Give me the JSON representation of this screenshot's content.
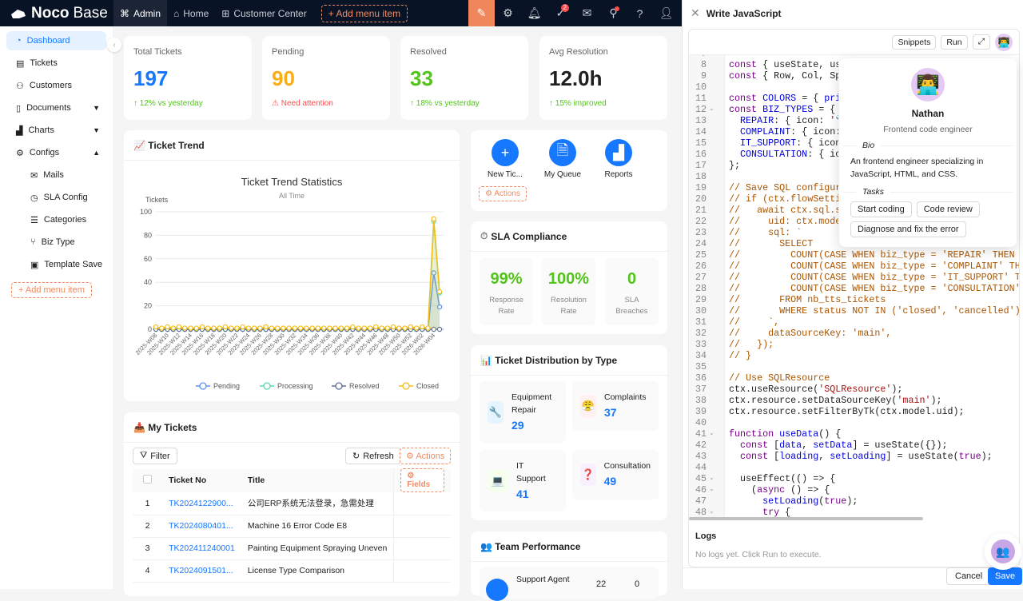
{
  "topbar": {
    "logo": {
      "bold": "Noco",
      "light": "Base"
    },
    "nav": [
      "Admin",
      "Home",
      "Customer Center"
    ],
    "add_menu": "+ Add menu item",
    "todo_badge": "2"
  },
  "sidebar": {
    "items": [
      {
        "label": "Dashboard",
        "icon": "dashboard-icon"
      },
      {
        "label": "Tickets",
        "icon": "ticket-icon"
      },
      {
        "label": "Customers",
        "icon": "users-icon"
      },
      {
        "label": "Documents",
        "icon": "document-icon"
      },
      {
        "label": "Charts",
        "icon": "chart-icon"
      },
      {
        "label": "Configs",
        "icon": "gear-icon"
      },
      {
        "label": "Mails",
        "icon": "mail-icon"
      },
      {
        "label": "SLA Config",
        "icon": "clock-icon"
      },
      {
        "label": "Categories",
        "icon": "list-icon"
      },
      {
        "label": "Biz Type",
        "icon": "branch-icon"
      },
      {
        "label": "Template Save",
        "icon": "save-icon"
      }
    ],
    "add_menu": "+ Add menu item"
  },
  "stats": [
    {
      "label": "Total Tickets",
      "value": "197",
      "sub": "↑ 12% vs yesterday",
      "color": "#1677ff",
      "sub_color": "#52c41a"
    },
    {
      "label": "Pending",
      "value": "90",
      "sub": "⚠ Need attention",
      "color": "#faad14",
      "sub_color": "#ff4d4f"
    },
    {
      "label": "Resolved",
      "value": "33",
      "sub": "↑ 18% vs yesterday",
      "color": "#52c41a",
      "sub_color": "#52c41a"
    },
    {
      "label": "Avg Resolution",
      "value": "12.0h",
      "sub": "↑ 15% improved",
      "color": "#1f1f1f",
      "sub_color": "#52c41a"
    }
  ],
  "trend": {
    "header": "📈 Ticket Trend"
  },
  "chart_data": {
    "type": "line",
    "title": "Ticket Trend Statistics",
    "subtitle": "All Time",
    "ylabel": "Tickets",
    "ylim": [
      0,
      100
    ],
    "yticks": [
      0,
      20,
      40,
      60,
      80,
      100
    ],
    "grid": true,
    "legend": "bottom",
    "x": [
      "2025-W08",
      "2025-W09",
      "2025-W10",
      "2025-W11",
      "2025-W12",
      "2025-W13",
      "2025-W14",
      "2025-W15",
      "2025-W16",
      "2025-W17",
      "2025-W18",
      "2025-W19",
      "2025-W20",
      "2025-W21",
      "2025-W22",
      "2025-W23",
      "2025-W24",
      "2025-W25",
      "2025-W26",
      "2025-W27",
      "2025-W28",
      "2025-W29",
      "2025-W30",
      "2025-W31",
      "2025-W32",
      "2025-W33",
      "2025-W34",
      "2025-W35",
      "2025-W36",
      "2025-W37",
      "2025-W38",
      "2025-W39",
      "2025-W40",
      "2025-W41",
      "2025-W42",
      "2025-W43",
      "2025-W44",
      "2025-W45",
      "2025-W46",
      "2025-W47",
      "2025-W48",
      "2025-W49",
      "2025-W50",
      "2025-W51",
      "2025-W52",
      "2026-W01",
      "2026-W02",
      "2026-W03",
      "2026-W04",
      "2026-W05"
    ],
    "series": [
      {
        "name": "Pending",
        "color": "#5b8ff9",
        "values": [
          0,
          0,
          0,
          0,
          0,
          0,
          0,
          0,
          0,
          0,
          0,
          0,
          0,
          0,
          0,
          0,
          0,
          0,
          0,
          0,
          0,
          0,
          0,
          0,
          0,
          0,
          0,
          0,
          0,
          0,
          0,
          0,
          0,
          0,
          0,
          0,
          0,
          0,
          0,
          0,
          0,
          0,
          0,
          0,
          0,
          0,
          0,
          0,
          48,
          19
        ]
      },
      {
        "name": "Processing",
        "color": "#5ad8a6",
        "values": [
          0,
          0,
          0,
          0,
          0,
          0,
          0,
          0,
          0,
          0,
          0,
          0,
          0,
          0,
          0,
          0,
          0,
          0,
          0,
          0,
          0,
          0,
          0,
          0,
          0,
          0,
          0,
          0,
          0,
          0,
          0,
          0,
          0,
          0,
          0,
          0,
          0,
          0,
          0,
          0,
          0,
          0,
          0,
          0,
          0,
          0,
          0,
          0,
          92,
          31
        ]
      },
      {
        "name": "Resolved",
        "color": "#5d7092",
        "values": [
          0,
          0,
          0,
          0,
          0,
          0,
          0,
          0,
          0,
          0,
          0,
          0,
          0,
          0,
          0,
          0,
          0,
          0,
          0,
          0,
          0,
          0,
          0,
          0,
          0,
          0,
          0,
          0,
          0,
          0,
          0,
          0,
          0,
          0,
          0,
          0,
          0,
          0,
          0,
          0,
          0,
          0,
          0,
          0,
          0,
          0,
          0,
          0,
          0,
          0
        ]
      },
      {
        "name": "Closed",
        "color": "#f6bd16",
        "values": [
          2,
          1,
          2,
          1,
          2,
          1,
          1,
          1,
          2,
          1,
          1,
          1,
          2,
          1,
          1,
          2,
          1,
          1,
          1,
          2,
          1,
          1,
          1,
          1,
          1,
          1,
          1,
          1,
          1,
          1,
          1,
          1,
          1,
          1,
          2,
          1,
          1,
          1,
          2,
          1,
          1,
          2,
          1,
          1,
          2,
          1,
          2,
          1,
          94,
          32
        ]
      }
    ]
  },
  "quick_actions": {
    "items": [
      {
        "label": "New Tic...",
        "icon": "plus-icon"
      },
      {
        "label": "My Queue",
        "icon": "file-icon"
      },
      {
        "label": "Reports",
        "icon": "area-chart-icon"
      }
    ],
    "actions": "Actions"
  },
  "sla": {
    "header": "SLA Compliance",
    "items": [
      {
        "value": "99%",
        "label1": "Response",
        "label2": "Rate"
      },
      {
        "value": "100%",
        "label1": "Resolution",
        "label2": "Rate"
      },
      {
        "value": "0",
        "label1": "SLA",
        "label2": "Breaches"
      }
    ]
  },
  "distribution": {
    "header": "📊 Ticket Distribution by Type",
    "items": [
      {
        "name1": "Equipment",
        "name2": "Repair",
        "count": "29",
        "icon": "🔧",
        "bg": "#e6f4ff"
      },
      {
        "name1": "Complaints",
        "name2": "",
        "count": "37",
        "icon": "😤",
        "bg": "#fff1f0"
      },
      {
        "name1": "IT",
        "name2": "Support",
        "count": "41",
        "icon": "💻",
        "bg": "#f6ffed"
      },
      {
        "name1": "Consultation",
        "name2": "",
        "count": "49",
        "icon": "❓",
        "bg": "#f9f0ff"
      }
    ]
  },
  "team": {
    "header": "👥 Team Performance",
    "agent": "Support Agent",
    "v1": "22",
    "v2": "0"
  },
  "tickets": {
    "header": "📥 My Tickets",
    "filter": "Filter",
    "refresh": "Refresh",
    "actions": "Actions",
    "fields": "Fields",
    "columns": [
      "Ticket No",
      "Title"
    ],
    "rows": [
      {
        "n": "1",
        "no": "TK2024122900...",
        "title": "公司ERP系统无法登录，急需处理"
      },
      {
        "n": "2",
        "no": "TK2024080401...",
        "title": "Machine 16 Error Code E8"
      },
      {
        "n": "3",
        "no": "TK202411240001",
        "title": "Painting Equipment Spraying Uneven"
      },
      {
        "n": "4",
        "no": "TK2024091501...",
        "title": "License Type Comparison"
      }
    ]
  },
  "drawer": {
    "title": "Write JavaScript",
    "snippets": "Snippets",
    "run": "Run",
    "code_start": 7,
    "code": [
      "",
      "const { useState, useEff",
      "const { Row, Col, Spin }",
      "",
      "const COLORS = { primary",
      "const BIZ_TYPES = {",
      "  REPAIR: { icon: '🔧',",
      "  COMPLAINT: { icon: '😤",
      "  IT_SUPPORT: { icon: '💻",
      "  CONSULTATION: { icon:",
      "};",
      "",
      "// Save SQL configuratio",
      "// if (ctx.flowSettingsE",
      "//   await ctx.sql.save(",
      "//     uid: ctx.model.ui",
      "//     sql: `",
      "//       SELECT",
      "//         COUNT(CASE WHEN biz_type = 'REPAIR' THEN 1 END) a",
      "//         COUNT(CASE WHEN biz_type = 'COMPLAINT' THEN 1 END",
      "//         COUNT(CASE WHEN biz_type = 'IT_SUPPORT' THEN 1 EN",
      "//         COUNT(CASE WHEN biz_type = 'CONSULTATION' THEN 1",
      "//       FROM nb_tts_tickets",
      "//       WHERE status NOT IN ('closed', 'cancelled')",
      "//     `,",
      "//     dataSourceKey: 'main',",
      "//   });",
      "// }",
      "",
      "// Use SQLResource",
      "ctx.useResource('SQLResource');",
      "ctx.resource.setDataSourceKey('main');",
      "ctx.resource.setFilterByTk(ctx.model.uid);",
      "",
      "function useData() {",
      "  const [data, setData] = useState({});",
      "  const [loading, setLoading] = useState(true);",
      "",
      "  useEffect(() => {",
      "    (async () => {",
      "      setLoading(true);",
      "      try {"
    ],
    "folds": [
      12,
      41,
      45,
      46,
      48
    ],
    "logs_title": "Logs",
    "logs_empty": "No logs yet. Click Run to execute.",
    "cancel": "Cancel",
    "save": "Save"
  },
  "profile": {
    "name": "Nathan",
    "role": "Frontend code engineer",
    "bio_label": "Bio",
    "bio": "An frontend engineer specializing in JavaScript, HTML, and CSS.",
    "tasks_label": "Tasks",
    "tasks": [
      "Start coding",
      "Code review",
      "Diagnose and fix the error"
    ]
  }
}
